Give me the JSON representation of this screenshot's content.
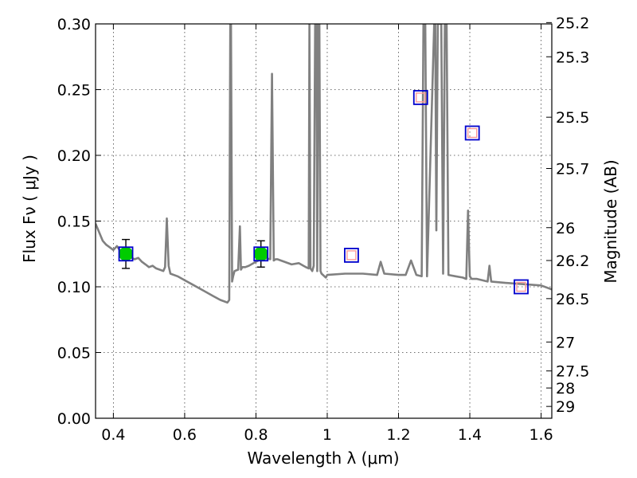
{
  "chart_data": {
    "type": "scatter",
    "title": "",
    "xlabel": "Wavelength  λ (μm)",
    "ylabel": "Flux  Fν  ( μJy )",
    "y2label": "Magnitude (AB)",
    "xlim": [
      0.35,
      1.63
    ],
    "ylim": [
      0.0,
      0.3
    ],
    "grid": true,
    "x_ticks": [
      0.4,
      0.6,
      0.8,
      1.0,
      1.2,
      1.4,
      1.6
    ],
    "x_tick_labels": [
      "0.4",
      "0.6",
      "0.8",
      "1",
      "1.2",
      "1.4",
      "1.6"
    ],
    "y_ticks": [
      0.0,
      0.05,
      0.1,
      0.15,
      0.2,
      0.25,
      0.3
    ],
    "y_tick_labels": [
      "0.00",
      "0.05",
      "0.10",
      "0.15",
      "0.20",
      "0.25",
      "0.30"
    ],
    "y2_ticks": [
      {
        "label": "25.2",
        "flux": 0.301
      },
      {
        "label": "25.3",
        "flux": 0.275
      },
      {
        "label": "25.5",
        "flux": 0.229
      },
      {
        "label": "25.7",
        "flux": 0.19
      },
      {
        "label": "26",
        "flux": 0.145
      },
      {
        "label": "26.2",
        "flux": 0.12
      },
      {
        "label": "26.5",
        "flux": 0.091
      },
      {
        "label": "27",
        "flux": 0.058
      },
      {
        "label": "27.5",
        "flux": 0.036
      },
      {
        "label": "28",
        "flux": 0.023
      },
      {
        "label": "29",
        "flux": 0.009
      }
    ],
    "series": [
      {
        "type": "line",
        "color": "#808080",
        "x": [
          0.35,
          0.37,
          0.38,
          0.4,
          0.41,
          0.42,
          0.43,
          0.44,
          0.45,
          0.46,
          0.47,
          0.48,
          0.49,
          0.5,
          0.51,
          0.52,
          0.53,
          0.54,
          0.545,
          0.55,
          0.555,
          0.56,
          0.58,
          0.6,
          0.62,
          0.64,
          0.66,
          0.68,
          0.7,
          0.71,
          0.72,
          0.725,
          0.728,
          0.73,
          0.733,
          0.736,
          0.74,
          0.75,
          0.755,
          0.758,
          0.762,
          0.77,
          0.78,
          0.8,
          0.82,
          0.84,
          0.845,
          0.85,
          0.855,
          0.86,
          0.88,
          0.9,
          0.92,
          0.94,
          0.948,
          0.95,
          0.953,
          0.958,
          0.962,
          0.966,
          0.97,
          0.972,
          0.975,
          0.978,
          0.981,
          0.984,
          0.988,
          0.992,
          0.996,
          1.0,
          1.05,
          1.1,
          1.14,
          1.15,
          1.16,
          1.2,
          1.22,
          1.235,
          1.25,
          1.265,
          1.27,
          1.275,
          1.28,
          1.3,
          1.303,
          1.306,
          1.31,
          1.32,
          1.325,
          1.33,
          1.335,
          1.34,
          1.36,
          1.38,
          1.39,
          1.395,
          1.4,
          1.405,
          1.42,
          1.45,
          1.455,
          1.46,
          1.5,
          1.55,
          1.6,
          1.63
        ],
        "y": [
          0.148,
          0.135,
          0.132,
          0.128,
          0.131,
          0.127,
          0.125,
          0.124,
          0.122,
          0.121,
          0.122,
          0.119,
          0.117,
          0.115,
          0.116,
          0.114,
          0.113,
          0.112,
          0.115,
          0.152,
          0.116,
          0.11,
          0.108,
          0.105,
          0.102,
          0.099,
          0.096,
          0.093,
          0.09,
          0.089,
          0.088,
          0.09,
          0.3,
          0.3,
          0.104,
          0.108,
          0.112,
          0.113,
          0.146,
          0.113,
          0.115,
          0.115,
          0.116,
          0.119,
          0.122,
          0.121,
          0.262,
          0.12,
          0.121,
          0.121,
          0.119,
          0.117,
          0.118,
          0.115,
          0.114,
          0.3,
          0.114,
          0.112,
          0.116,
          0.3,
          0.3,
          0.112,
          0.3,
          0.3,
          0.112,
          0.11,
          0.109,
          0.108,
          0.107,
          0.109,
          0.11,
          0.11,
          0.109,
          0.119,
          0.11,
          0.109,
          0.109,
          0.12,
          0.109,
          0.108,
          0.3,
          0.3,
          0.108,
          0.3,
          0.3,
          0.143,
          0.3,
          0.3,
          0.11,
          0.3,
          0.3,
          0.109,
          0.108,
          0.107,
          0.106,
          0.158,
          0.108,
          0.106,
          0.106,
          0.104,
          0.116,
          0.104,
          0.103,
          0.102,
          0.101,
          0.098
        ]
      },
      {
        "type": "scatter",
        "marker": "circle",
        "color": "#00cc00",
        "x": [
          0.435,
          0.814
        ],
        "y": [
          0.125,
          0.125
        ],
        "yerr": [
          0.011,
          0.01
        ]
      },
      {
        "type": "scatter",
        "marker": "square-open",
        "color": "#0000cc",
        "x": [
          0.435,
          0.814,
          1.068,
          1.262,
          1.407,
          1.544
        ],
        "y": [
          0.125,
          0.125,
          0.124,
          0.244,
          0.217,
          0.1
        ]
      },
      {
        "type": "scatter",
        "marker": "square-open",
        "color": "#ff9999",
        "x": [
          1.068,
          1.262,
          1.407,
          1.544
        ],
        "y": [
          0.124,
          0.244,
          0.217,
          0.1
        ]
      }
    ]
  }
}
